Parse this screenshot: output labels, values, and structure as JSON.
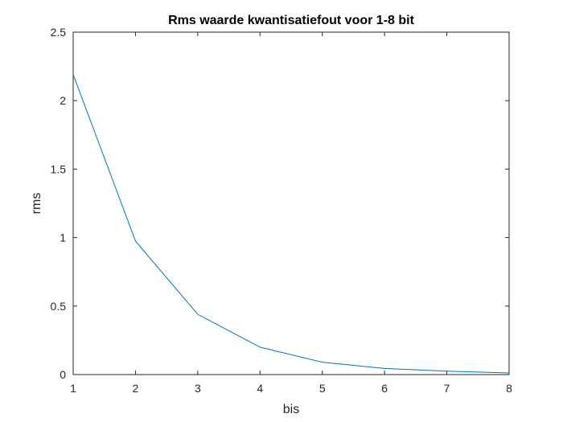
{
  "chart_data": {
    "type": "line",
    "title": "Rms waarde kwantisatiefout voor 1-8 bit",
    "xlabel": "bis",
    "ylabel": "rms",
    "xlim": [
      1,
      8
    ],
    "ylim": [
      0,
      2.5
    ],
    "xticks": [
      1,
      2,
      3,
      4,
      5,
      6,
      7,
      8
    ],
    "xtick_labels": [
      "1",
      "2",
      "3",
      "4",
      "5",
      "6",
      "7",
      "8"
    ],
    "yticks": [
      0,
      0.5,
      1,
      1.5,
      2,
      2.5
    ],
    "ytick_labels": [
      "0",
      "0.5",
      "1",
      "1.5",
      "2",
      "2.5"
    ],
    "grid": false,
    "series": [
      {
        "x": [
          1,
          2,
          3,
          4,
          5,
          6,
          7,
          8
        ],
        "values": [
          2.19,
          0.975,
          0.44,
          0.2,
          0.09,
          0.045,
          0.025,
          0.012
        ],
        "color": "#0072BD"
      }
    ]
  }
}
